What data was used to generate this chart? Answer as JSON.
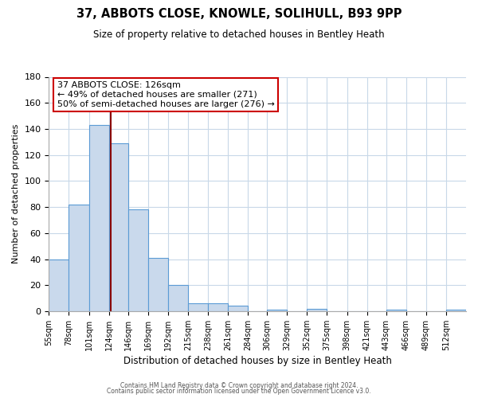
{
  "title": "37, ABBOTS CLOSE, KNOWLE, SOLIHULL, B93 9PP",
  "subtitle": "Size of property relative to detached houses in Bentley Heath",
  "xlabel": "Distribution of detached houses by size in Bentley Heath",
  "ylabel": "Number of detached properties",
  "bin_labels": [
    "55sqm",
    "78sqm",
    "101sqm",
    "124sqm",
    "146sqm",
    "169sqm",
    "192sqm",
    "215sqm",
    "238sqm",
    "261sqm",
    "284sqm",
    "306sqm",
    "329sqm",
    "352sqm",
    "375sqm",
    "398sqm",
    "421sqm",
    "443sqm",
    "466sqm",
    "489sqm",
    "512sqm"
  ],
  "bar_heights": [
    40,
    82,
    143,
    129,
    78,
    41,
    20,
    6,
    6,
    4,
    0,
    1,
    0,
    2,
    0,
    0,
    0,
    1,
    0,
    0,
    1
  ],
  "bar_color": "#c9d9ec",
  "bar_edge_color": "#5b9bd5",
  "property_line_x": 126,
  "property_line_color": "#8b0000",
  "annotation_line1": "37 ABBOTS CLOSE: 126sqm",
  "annotation_line2": "← 49% of detached houses are smaller (271)",
  "annotation_line3": "50% of semi-detached houses are larger (276) →",
  "annotation_box_color": "#ffffff",
  "annotation_box_edge": "#cc0000",
  "ylim": [
    0,
    180
  ],
  "yticks": [
    0,
    20,
    40,
    60,
    80,
    100,
    120,
    140,
    160,
    180
  ],
  "footer_line1": "Contains HM Land Registry data © Crown copyright and database right 2024.",
  "footer_line2": "Contains public sector information licensed under the Open Government Licence v3.0.",
  "background_color": "#ffffff",
  "grid_color": "#c8d8e8",
  "bin_edges": [
    55,
    78,
    101,
    124,
    146,
    169,
    192,
    215,
    238,
    261,
    284,
    306,
    329,
    352,
    375,
    398,
    421,
    443,
    466,
    489,
    512
  ]
}
